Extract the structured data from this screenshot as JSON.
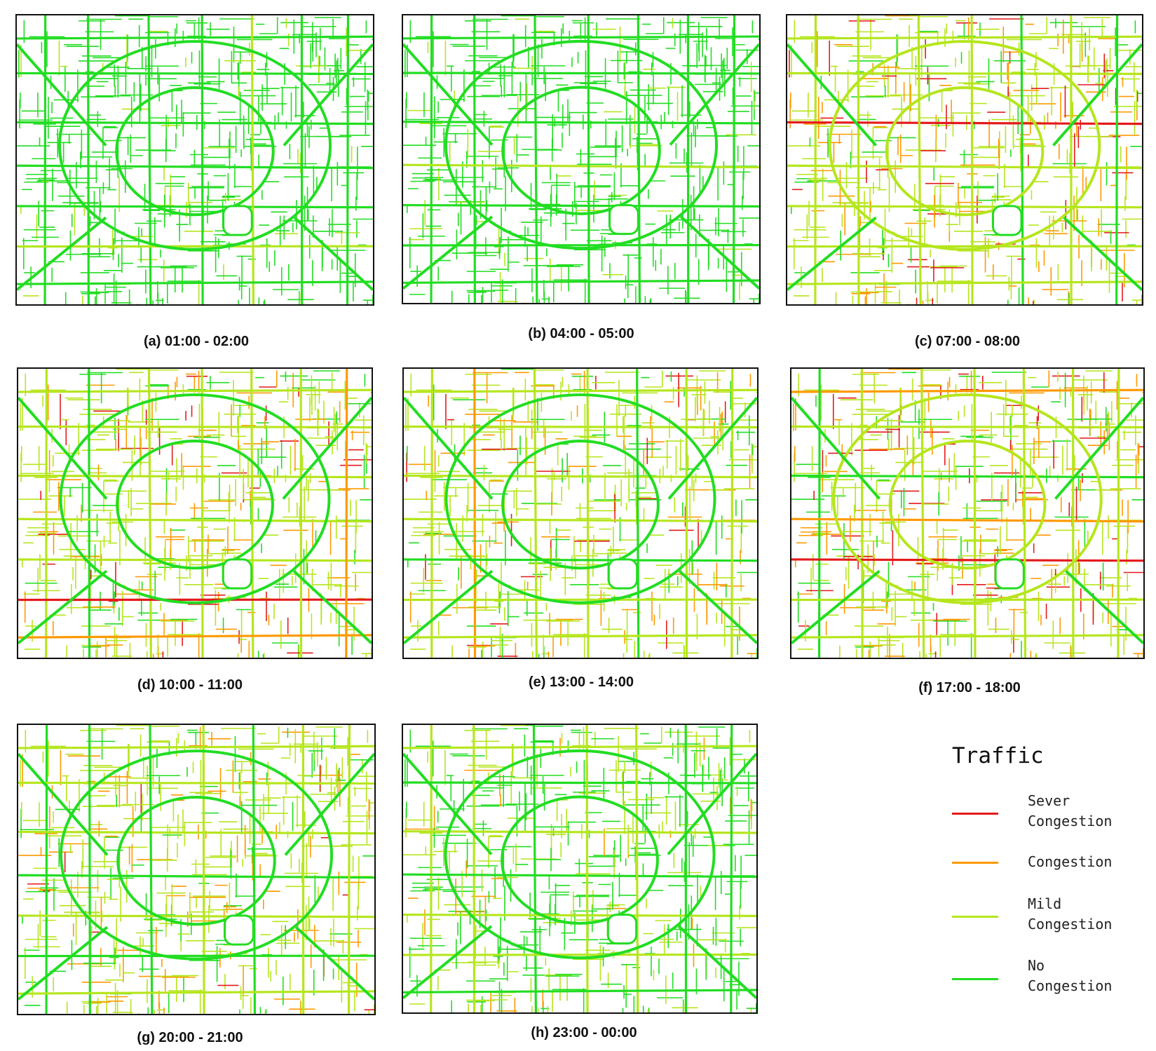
{
  "figure": {
    "panels": [
      {
        "id": "a",
        "caption": "(a) 01:00 - 02:00",
        "mix": [
          0.0,
          0.0,
          0.12,
          0.88
        ]
      },
      {
        "id": "b",
        "caption": "(b) 04:00 - 05:00",
        "mix": [
          0.0,
          0.0,
          0.1,
          0.9
        ]
      },
      {
        "id": "c",
        "caption": "(c) 07:00 - 08:00",
        "mix": [
          0.1,
          0.22,
          0.53,
          0.15
        ]
      },
      {
        "id": "d",
        "caption": "(d) 10:00 - 11:00",
        "mix": [
          0.06,
          0.22,
          0.55,
          0.17
        ]
      },
      {
        "id": "e",
        "caption": "(e) 13:00 - 14:00",
        "mix": [
          0.05,
          0.2,
          0.57,
          0.18
        ]
      },
      {
        "id": "f",
        "caption": "(f) 17:00 - 18:00",
        "mix": [
          0.12,
          0.25,
          0.5,
          0.13
        ]
      },
      {
        "id": "g",
        "caption": "(g) 20:00 - 21:00",
        "mix": [
          0.02,
          0.18,
          0.6,
          0.2
        ]
      },
      {
        "id": "h",
        "caption": "(h) 23:00 - 00:00",
        "mix": [
          0.0,
          0.04,
          0.38,
          0.58
        ]
      }
    ],
    "legend": {
      "title": "Traffic",
      "items": [
        {
          "lines": [
            "Sever",
            "Congestion"
          ],
          "color": "#e41a1c"
        },
        {
          "lines": [
            "Congestion"
          ],
          "color": "#ff9900"
        },
        {
          "lines": [
            "Mild",
            "Congestion"
          ],
          "color": "#b5e61d"
        },
        {
          "lines": [
            "No",
            "Congestion"
          ],
          "color": "#22dd22"
        }
      ]
    }
  }
}
